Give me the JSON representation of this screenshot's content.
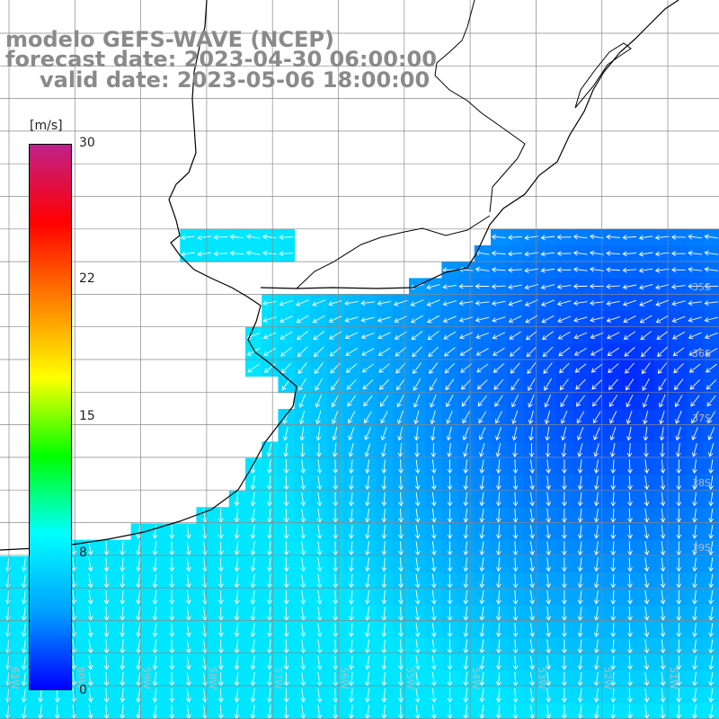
{
  "title": {
    "line1": "modelo GEFS-WAVE (NCEP)",
    "line2": "forecast date: 2023-04-30 06:00:00",
    "line3": "valid date: 2023-05-06 18:00:00"
  },
  "colorbar": {
    "unit": "[m/s]",
    "ticks": [
      "30",
      "22",
      "15",
      "8",
      "0"
    ],
    "range": [
      0,
      30
    ],
    "colors": [
      "#0000ff",
      "#00a0ff",
      "#00ffff",
      "#00ff00",
      "#ffff00",
      "#ff8000",
      "#ff0000",
      "#c0208a"
    ]
  },
  "lat_labels": [
    "35S",
    "36S",
    "37S",
    "38S",
    "39S"
  ],
  "lon_labels": [
    "61W",
    "60W",
    "59W",
    "58W",
    "57W",
    "56W",
    "55W",
    "54W",
    "53W",
    "52W",
    "51W"
  ],
  "colors": {
    "land": "#ffffff",
    "grid": "#888888",
    "coast": "#000000",
    "arrow": "#ffffff",
    "title": "#8a8a8a"
  }
}
